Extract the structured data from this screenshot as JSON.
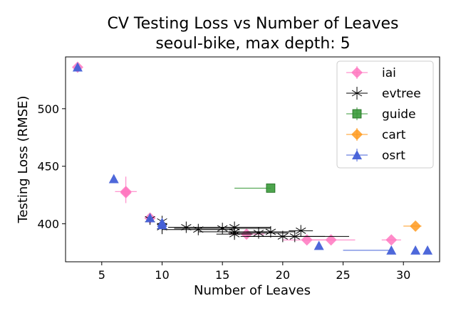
{
  "chart_data": {
    "type": "scatter",
    "title": "CV Testing Loss vs Number of Leaves",
    "subtitle": "seoul-bike, max depth: 5",
    "xlabel": "Number of Leaves",
    "ylabel": "Testing Loss (RMSE)",
    "xlim": [
      2,
      33
    ],
    "ylim": [
      367,
      545
    ],
    "xticks": [
      5,
      10,
      15,
      20,
      25,
      30
    ],
    "yticks": [
      400,
      450,
      500
    ],
    "grid": false,
    "legend_position": "top-right",
    "series": [
      {
        "name": "iai",
        "marker": "diamond",
        "color": "#ff77c0",
        "points": [
          {
            "x": 3,
            "y": 536,
            "xerr": [
              0,
              0
            ],
            "yerr": [
              0,
              0
            ]
          },
          {
            "x": 7,
            "y": 428,
            "xerr": [
              0.9,
              0.9
            ],
            "yerr": [
              10,
              13
            ]
          },
          {
            "x": 7,
            "y": 427,
            "xerr": [
              0,
              0
            ],
            "yerr": [
              0,
              0
            ]
          },
          {
            "x": 9,
            "y": 405,
            "xerr": [
              0.3,
              0.3
            ],
            "yerr": [
              0,
              0
            ]
          },
          {
            "x": 17,
            "y": 391,
            "xerr": [
              1.5,
              1.5
            ],
            "yerr": [
              0,
              0
            ]
          },
          {
            "x": 22,
            "y": 386,
            "xerr": [
              2.0,
              2.0
            ],
            "yerr": [
              0,
              0
            ]
          },
          {
            "x": 24,
            "y": 386,
            "xerr": [
              2.0,
              2.0
            ],
            "yerr": [
              0,
              0
            ]
          },
          {
            "x": 29,
            "y": 386,
            "xerr": [
              0.8,
              0.8
            ],
            "yerr": [
              0,
              0
            ]
          }
        ]
      },
      {
        "name": "evtree",
        "marker": "star",
        "color": "#000000",
        "points": [
          {
            "x": 9,
            "y": 404,
            "xerr": [
              0,
              0
            ],
            "yerr": [
              0,
              0
            ]
          },
          {
            "x": 10,
            "y": 402,
            "xerr": [
              0,
              0
            ],
            "yerr": [
              0,
              0
            ]
          },
          {
            "x": 10,
            "y": 398,
            "xerr": [
              0,
              0
            ],
            "yerr": [
              7,
              0
            ]
          },
          {
            "x": 10,
            "y": 397,
            "xerr": [
              0,
              0
            ],
            "yerr": [
              0,
              0
            ]
          },
          {
            "x": 12,
            "y": 397,
            "xerr": [
              1.5,
              1.5
            ],
            "yerr": [
              0,
              0
            ]
          },
          {
            "x": 13,
            "y": 395,
            "xerr": [
              3.0,
              3.0
            ],
            "yerr": [
              0,
              0
            ]
          },
          {
            "x": 15,
            "y": 396,
            "xerr": [
              4.0,
              4.0
            ],
            "yerr": [
              0,
              0
            ]
          },
          {
            "x": 16,
            "y": 397,
            "xerr": [
              5.5,
              3.0
            ],
            "yerr": [
              0,
              0
            ]
          },
          {
            "x": 16,
            "y": 393,
            "xerr": [
              3.0,
              3.0
            ],
            "yerr": [
              0,
              0
            ]
          },
          {
            "x": 16,
            "y": 391,
            "xerr": [
              1.5,
              1.5
            ],
            "yerr": [
              0,
              0
            ]
          },
          {
            "x": 18,
            "y": 392,
            "xerr": [
              2.5,
              2.5
            ],
            "yerr": [
              0,
              0
            ]
          },
          {
            "x": 19,
            "y": 393,
            "xerr": [
              2.0,
              2.0
            ],
            "yerr": [
              0,
              0
            ]
          },
          {
            "x": 20,
            "y": 389,
            "xerr": [
              3.5,
              3.5
            ],
            "yerr": [
              0,
              0
            ]
          },
          {
            "x": 21,
            "y": 389,
            "xerr": [
              4.0,
              4.5
            ],
            "yerr": [
              0,
              0
            ]
          },
          {
            "x": 21.5,
            "y": 394,
            "xerr": [
              1.0,
              1.0
            ],
            "yerr": [
              0,
              0
            ]
          }
        ]
      },
      {
        "name": "guide",
        "marker": "square",
        "color": "#3a9a3a",
        "points": [
          {
            "x": 19,
            "y": 431,
            "xerr": [
              3.0,
              0
            ],
            "yerr": [
              0,
              0
            ]
          }
        ]
      },
      {
        "name": "cart",
        "marker": "diamond",
        "color": "#ff9a1f",
        "points": [
          {
            "x": 31,
            "y": 398,
            "xerr": [
              1.0,
              0.5
            ],
            "yerr": [
              0,
              0
            ]
          }
        ]
      },
      {
        "name": "osrt",
        "marker": "triangle",
        "color": "#4460d8",
        "points": [
          {
            "x": 3,
            "y": 536,
            "xerr": [
              0,
              0
            ],
            "yerr": [
              0,
              0
            ]
          },
          {
            "x": 6,
            "y": 439,
            "xerr": [
              0,
              0
            ],
            "yerr": [
              0,
              0
            ]
          },
          {
            "x": 9,
            "y": 405,
            "xerr": [
              0,
              0
            ],
            "yerr": [
              0,
              0
            ]
          },
          {
            "x": 10,
            "y": 401,
            "xerr": [
              0,
              0
            ],
            "yerr": [
              0,
              0
            ]
          },
          {
            "x": 10,
            "y": 399,
            "xerr": [
              0,
              0
            ],
            "yerr": [
              0,
              0
            ]
          },
          {
            "x": 23,
            "y": 381,
            "xerr": [
              0,
              0
            ],
            "yerr": [
              0,
              0
            ]
          },
          {
            "x": 29,
            "y": 377,
            "xerr": [
              4.0,
              0
            ],
            "yerr": [
              0,
              0
            ]
          },
          {
            "x": 31,
            "y": 377,
            "xerr": [
              0,
              0
            ],
            "yerr": [
              0,
              0
            ]
          },
          {
            "x": 32,
            "y": 377,
            "xerr": [
              0,
              0
            ],
            "yerr": [
              0,
              0
            ]
          }
        ]
      }
    ]
  }
}
